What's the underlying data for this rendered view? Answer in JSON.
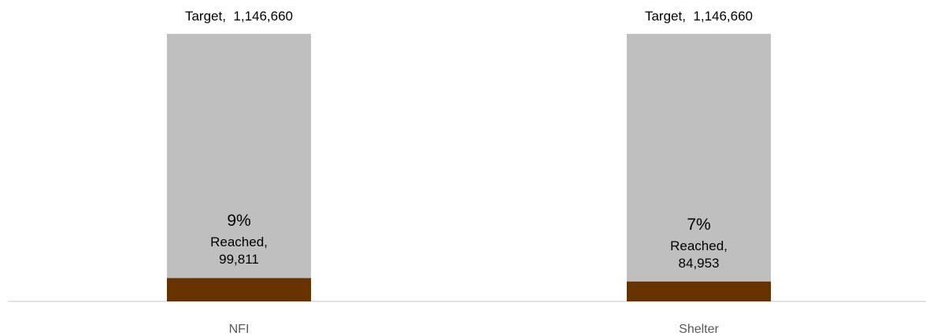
{
  "chart_data": {
    "type": "overlap-bar",
    "categories": [
      "NFI",
      "Shelter"
    ],
    "series": [
      {
        "name": "Target",
        "color": "#bfbfbf",
        "values": [
          1146660,
          1146660
        ],
        "value_labels": [
          "Target,  1,146,660",
          "Target,  1,146,660"
        ]
      },
      {
        "name": "Reached",
        "color": "#663300",
        "values": [
          99811,
          84953
        ],
        "value_labels": [
          "Reached, 99,811",
          "Reached, 84,953"
        ]
      }
    ],
    "percentages": {
      "values": [
        9,
        7
      ],
      "value_labels": [
        "9%",
        "7%"
      ]
    }
  }
}
